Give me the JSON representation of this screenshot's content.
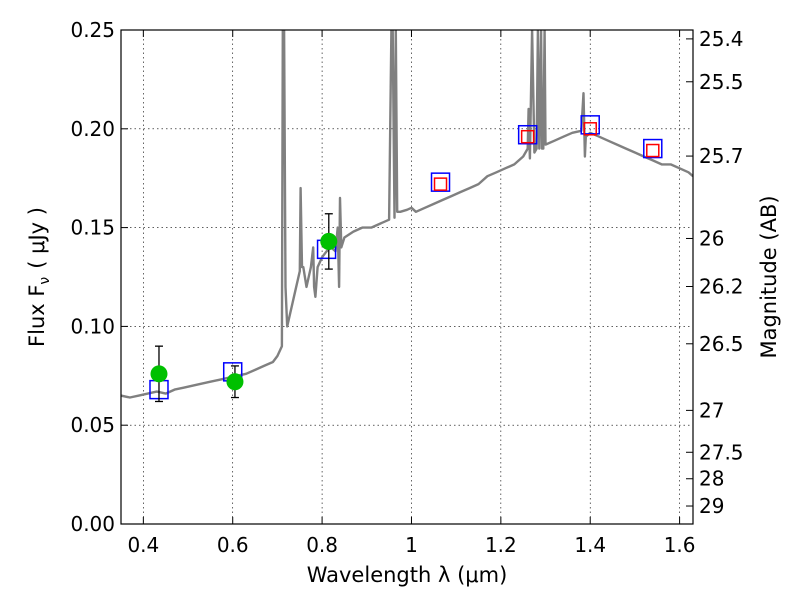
{
  "chart_data": {
    "type": "scatter",
    "title": "",
    "xlabel": "Wavelength  λ (μm)",
    "ylabel": "Flux  F",
    "ylabel_sub": "ν",
    "ylabel_unit": "( μJy )",
    "y2label": "Magnitude (AB)",
    "xlim": [
      0.35,
      1.63
    ],
    "ylim": [
      0.0,
      0.25
    ],
    "grid": true,
    "x_ticks": [
      0.4,
      0.6,
      0.8,
      1.0,
      1.2,
      1.4,
      1.6
    ],
    "x_tick_labels": [
      "0.4",
      "0.6",
      "0.8",
      "1",
      "1.2",
      "1.4",
      "1.6"
    ],
    "y_ticks": [
      0.0,
      0.05,
      0.1,
      0.15,
      0.2,
      0.25
    ],
    "y_tick_labels": [
      "0.00",
      "0.05",
      "0.10",
      "0.15",
      "0.20",
      "0.25"
    ],
    "y2_ticks": [
      {
        "flux": 0.2455,
        "label": "25.4"
      },
      {
        "flux": 0.2238,
        "label": "25.5"
      },
      {
        "flux": 0.1862,
        "label": "25.7"
      },
      {
        "flux": 0.1445,
        "label": "26"
      },
      {
        "flux": 0.1202,
        "label": "26.2"
      },
      {
        "flux": 0.0912,
        "label": "26.5"
      },
      {
        "flux": 0.0575,
        "label": "27"
      },
      {
        "flux": 0.0363,
        "label": "27.5"
      },
      {
        "flux": 0.0229,
        "label": "28"
      },
      {
        "flux": 0.0091,
        "label": "29"
      }
    ],
    "series": [
      {
        "name": "model-spectrum",
        "kind": "line",
        "color": "#808080",
        "x": [
          0.35,
          0.37,
          0.39,
          0.41,
          0.43,
          0.45,
          0.47,
          0.49,
          0.51,
          0.53,
          0.55,
          0.57,
          0.59,
          0.61,
          0.63,
          0.65,
          0.67,
          0.69,
          0.7,
          0.71,
          0.712,
          0.715,
          0.718,
          0.722,
          0.73,
          0.74,
          0.75,
          0.752,
          0.755,
          0.758,
          0.765,
          0.775,
          0.78,
          0.782,
          0.785,
          0.79,
          0.8,
          0.81,
          0.82,
          0.83,
          0.835,
          0.838,
          0.84,
          0.843,
          0.85,
          0.87,
          0.89,
          0.91,
          0.93,
          0.95,
          0.955,
          0.958,
          0.962,
          0.965,
          0.968,
          0.975,
          0.99,
          1.0,
          1.01,
          1.03,
          1.05,
          1.07,
          1.09,
          1.11,
          1.13,
          1.15,
          1.17,
          1.19,
          1.21,
          1.23,
          1.25,
          1.26,
          1.262,
          1.265,
          1.27,
          1.275,
          1.28,
          1.283,
          1.286,
          1.29,
          1.292,
          1.295,
          1.298,
          1.3,
          1.32,
          1.34,
          1.36,
          1.38,
          1.385,
          1.388,
          1.39,
          1.4,
          1.42,
          1.44,
          1.46,
          1.48,
          1.5,
          1.52,
          1.54,
          1.56,
          1.58,
          1.6,
          1.62,
          1.63
        ],
        "y": [
          0.065,
          0.064,
          0.065,
          0.066,
          0.067,
          0.066,
          0.068,
          0.069,
          0.07,
          0.071,
          0.072,
          0.073,
          0.074,
          0.075,
          0.076,
          0.078,
          0.08,
          0.082,
          0.085,
          0.09,
          0.25,
          0.25,
          0.12,
          0.1,
          0.108,
          0.118,
          0.128,
          0.17,
          0.13,
          0.13,
          0.12,
          0.13,
          0.14,
          0.12,
          0.115,
          0.13,
          0.135,
          0.138,
          0.14,
          0.138,
          0.15,
          0.12,
          0.165,
          0.14,
          0.145,
          0.148,
          0.15,
          0.15,
          0.152,
          0.154,
          0.25,
          0.25,
          0.155,
          0.25,
          0.158,
          0.158,
          0.159,
          0.16,
          0.158,
          0.16,
          0.162,
          0.164,
          0.166,
          0.168,
          0.17,
          0.172,
          0.176,
          0.178,
          0.18,
          0.182,
          0.186,
          0.19,
          0.21,
          0.185,
          0.25,
          0.188,
          0.19,
          0.25,
          0.19,
          0.25,
          0.19,
          0.19,
          0.25,
          0.192,
          0.194,
          0.196,
          0.198,
          0.199,
          0.218,
          0.186,
          0.196,
          0.198,
          0.196,
          0.194,
          0.192,
          0.19,
          0.188,
          0.186,
          0.184,
          0.182,
          0.182,
          0.18,
          0.178,
          0.176
        ]
      },
      {
        "name": "model-photometry-blue",
        "kind": "square",
        "color": "#0000ff",
        "x": [
          0.435,
          0.6,
          0.81,
          1.065,
          1.26,
          1.4,
          1.54
        ],
        "y": [
          0.068,
          0.077,
          0.139,
          0.173,
          0.197,
          0.202,
          0.19
        ]
      },
      {
        "name": "model-photometry-red",
        "kind": "square",
        "color": "#ff0000",
        "x": [
          1.065,
          1.26,
          1.4,
          1.54
        ],
        "y": [
          0.172,
          0.196,
          0.2,
          0.189
        ]
      },
      {
        "name": "observed-photometry",
        "kind": "point",
        "color": "#00c000",
        "x": [
          0.435,
          0.605,
          0.815
        ],
        "y": [
          0.076,
          0.072,
          0.143
        ],
        "err": [
          0.014,
          0.008,
          0.014
        ]
      }
    ]
  }
}
